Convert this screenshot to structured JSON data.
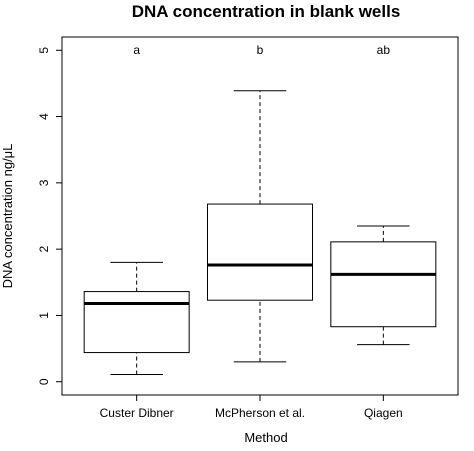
{
  "chart_data": {
    "type": "box",
    "title": "DNA concentration in blank wells",
    "xlabel": "Method",
    "ylabel": "DNA concentration ng/μL",
    "categories": [
      "Custer Dibner",
      "McPherson et al.",
      "Qiagen"
    ],
    "letters": [
      "a",
      "b",
      "ab"
    ],
    "boxes": [
      {
        "min": 0.11,
        "q1": 0.44,
        "median": 1.18,
        "q3": 1.36,
        "max": 1.8
      },
      {
        "min": 0.3,
        "q1": 1.23,
        "median": 1.76,
        "q3": 2.68,
        "max": 4.39
      },
      {
        "min": 0.56,
        "q1": 0.83,
        "median": 1.62,
        "q3": 2.11,
        "max": 2.35
      }
    ],
    "ylim": [
      -0.2,
      5.2
    ],
    "yticks": [
      0,
      1,
      2,
      3,
      4,
      5
    ]
  }
}
